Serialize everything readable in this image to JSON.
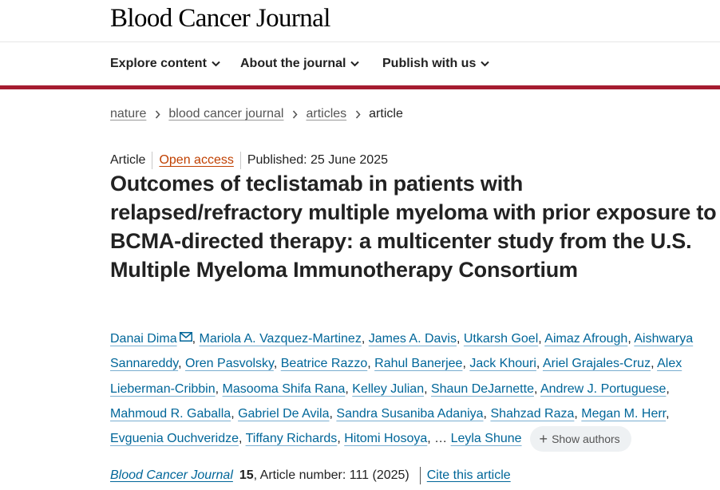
{
  "header": {
    "brand": "Blood Cancer Journal"
  },
  "nav": {
    "items": [
      {
        "label": "Explore content"
      },
      {
        "label": "About the journal"
      },
      {
        "label": "Publish with us"
      }
    ],
    "accent_color": "#a51c30"
  },
  "breadcrumbs": {
    "items": [
      "nature",
      "blood cancer journal",
      "articles"
    ],
    "current": "article"
  },
  "article": {
    "type": "Article",
    "access": "Open access",
    "published": "Published: 25 June 2025",
    "title": "Outcomes of teclistamab in patients with relapsed/refractory multiple myeloma with prior exposure to BCMA-directed therapy: a multicenter study from the U.S. Multiple Myeloma Immunotherapy Consortium",
    "authors": [
      "Danai Dima",
      "Mariola A. Vazquez-Martinez",
      "James A. Davis",
      "Utkarsh Goel",
      "Aimaz Afrough",
      "Aishwarya Sannareddy",
      "Oren Pasvolsky",
      "Beatrice Razzo",
      "Rahul Banerjee",
      "Jack Khouri",
      "Ariel Grajales-Cruz",
      "Alex Lieberman-Cribbin",
      "Masooma Shifa Rana",
      "Kelley Julian",
      "Shaun DeJarnette",
      "Andrew J. Portuguese",
      "Mahmoud R. Gaballa",
      "Gabriel De Avila",
      "Sandra Susaniba Adaniya",
      "Shahzad Raza",
      "Megan M. Herr",
      "Evguenia Ouchveridze",
      "Tiffany Richards",
      "Hitomi Hosoya"
    ],
    "ellipsis": "…",
    "last_author": "Leyla Shune",
    "show_authors_label": "Show authors",
    "corresponding_icon": "mail-icon"
  },
  "citation": {
    "journal": "Blood Cancer Journal",
    "volume": "15",
    "article_number": ", Article number: 111 (2025)",
    "cite_label": "Cite this article"
  },
  "colors": {
    "link": "#006699",
    "open_access": "#c04000",
    "accent": "#a51c30"
  }
}
